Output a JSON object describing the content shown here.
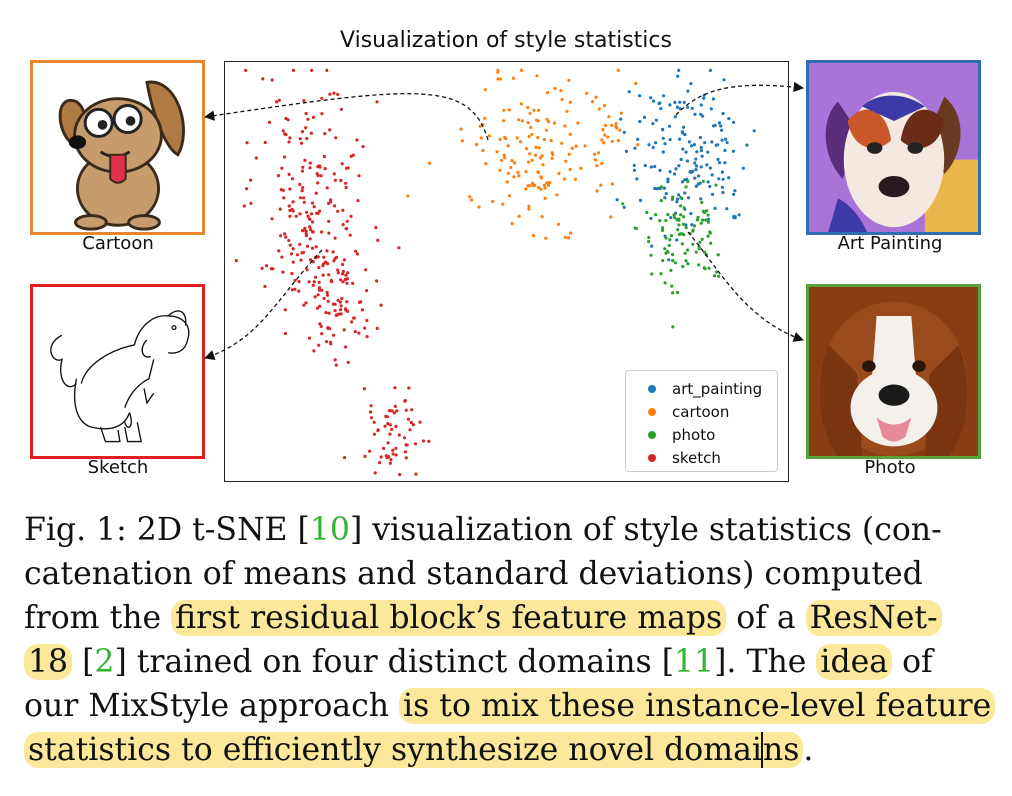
{
  "figure": {
    "title": "Visualization of style statistics",
    "labels": {
      "cartoon": "Cartoon",
      "art_painting": "Art Painting",
      "sketch": "Sketch",
      "photo": "Photo"
    },
    "border_colors": {
      "cartoon": "#e8852f",
      "art_painting": "#2f6db5",
      "sketch": "#e02020",
      "photo": "#5aa13a"
    }
  },
  "chart_data": {
    "type": "scatter",
    "title": "Visualization of style statistics",
    "xlabel": "",
    "ylabel": "",
    "grid": false,
    "legend_position": "bottom-right",
    "series": [
      {
        "name": "art_painting",
        "color": "#1f77b4",
        "clusters": [
          {
            "center": [
              0.82,
              0.22
            ],
            "spread": [
              0.055,
              0.1
            ],
            "count": 170
          }
        ]
      },
      {
        "name": "cartoon",
        "color": "#ff7f0e",
        "clusters": [
          {
            "center": [
              0.55,
              0.22
            ],
            "spread": [
              0.065,
              0.085
            ],
            "count": 150
          },
          {
            "center": [
              0.68,
              0.13
            ],
            "spread": [
              0.02,
              0.03
            ],
            "count": 15
          }
        ]
      },
      {
        "name": "photo",
        "color": "#2ca02c",
        "clusters": [
          {
            "center": [
              0.81,
              0.4
            ],
            "spread": [
              0.04,
              0.07
            ],
            "count": 100
          }
        ]
      },
      {
        "name": "sketch",
        "color": "#d62728",
        "clusters": [
          {
            "center": [
              0.15,
              0.33
            ],
            "spread": [
              0.05,
              0.14
            ],
            "count": 190
          },
          {
            "center": [
              0.2,
              0.57
            ],
            "spread": [
              0.032,
              0.08
            ],
            "count": 90
          },
          {
            "center": [
              0.29,
              0.88
            ],
            "spread": [
              0.03,
              0.055
            ],
            "count": 60
          }
        ]
      }
    ]
  },
  "caption": {
    "l1": "Fig. 1: 2D t-SNE [",
    "l1_ref": "10",
    "l1_rest": "] visualization of style statistics (con-",
    "l2": "catenation of means and standard deviations) computed",
    "l3_a": "from the ",
    "l3_hl": "first residual block’s feature maps",
    "l3_b": " of a ",
    "l3_hl2": "ResNet-",
    "l4_hl": "18",
    "l4_a": "  [",
    "l4_ref": "2",
    "l4_b": "] trained on four distinct domains [",
    "l4_ref2": "11",
    "l4_c": "]. The ",
    "l4_hl2": "idea",
    "l4_d": " of",
    "l5_a": "our MixStyle approach ",
    "l5_hl": "is to mix these instance-level feature",
    "l6_hl": "statistics to efficiently synthesize novel domai",
    "l6_hl_b": "ns",
    "l6_end": "."
  }
}
